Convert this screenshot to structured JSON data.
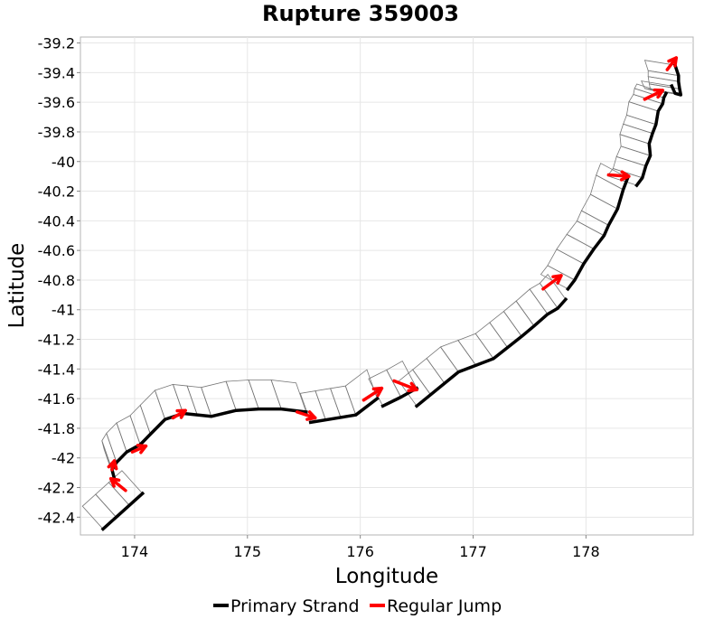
{
  "chart_data": {
    "type": "line",
    "title": "Rupture 359003",
    "xlabel": "Longitude",
    "ylabel": "Latitude",
    "xlim": [
      173.52,
      178.95
    ],
    "ylim": [
      -42.52,
      -39.16
    ],
    "x_ticks": [
      174,
      175,
      176,
      177,
      178
    ],
    "x_tick_labels": [
      "174",
      "175",
      "176",
      "177",
      "178"
    ],
    "y_ticks": [
      -39.2,
      -39.4,
      -39.6,
      -39.8,
      -40.0,
      -40.2,
      -40.4,
      -40.6,
      -40.8,
      -41.0,
      -41.2,
      -41.4,
      -41.6,
      -41.8,
      -42.0,
      -42.2,
      -42.4
    ],
    "y_tick_labels": [
      "-39.2",
      "-39.4",
      "-39.6",
      "-39.8",
      "-40",
      "-40.2",
      "-40.4",
      "-40.6",
      "-40.8",
      "-41",
      "-41.2",
      "-41.4",
      "-41.6",
      "-41.8",
      "-42",
      "-42.2",
      "-42.4"
    ],
    "grid": true,
    "legend_position": "bottom",
    "legend": [
      {
        "label": "Primary Strand",
        "color": "#000000"
      },
      {
        "label": "Regular Jump",
        "color": "#ff0000"
      }
    ],
    "series": [
      {
        "name": "Primary Strand",
        "color": "#000000",
        "segments": [
          [
            [
              173.72,
              -42.48
            ],
            [
              174.07,
              -42.24
            ]
          ],
          [
            [
              173.82,
              -42.14
            ],
            [
              173.8,
              -42.08
            ],
            [
              173.84,
              -42.03
            ],
            [
              173.93,
              -41.96
            ],
            [
              174.05,
              -41.91
            ],
            [
              174.14,
              -41.84
            ],
            [
              174.27,
              -41.74
            ],
            [
              174.43,
              -41.7
            ],
            [
              174.68,
              -41.72
            ],
            [
              174.9,
              -41.68
            ],
            [
              175.1,
              -41.67
            ],
            [
              175.3,
              -41.67
            ],
            [
              175.52,
              -41.69
            ]
          ],
          [
            [
              175.56,
              -41.76
            ],
            [
              175.96,
              -41.71
            ],
            [
              176.15,
              -41.6
            ]
          ],
          [
            [
              176.2,
              -41.65
            ],
            [
              176.36,
              -41.59
            ],
            [
              176.5,
              -41.53
            ]
          ],
          [
            [
              176.5,
              -41.65
            ],
            [
              176.87,
              -41.42
            ],
            [
              177.18,
              -41.33
            ],
            [
              177.43,
              -41.18
            ],
            [
              177.54,
              -41.11
            ],
            [
              177.66,
              -41.03
            ],
            [
              177.75,
              -40.99
            ],
            [
              177.82,
              -40.93
            ]
          ],
          [
            [
              177.84,
              -40.86
            ],
            [
              177.9,
              -40.8
            ],
            [
              177.98,
              -40.69
            ],
            [
              178.07,
              -40.59
            ],
            [
              178.16,
              -40.5
            ],
            [
              178.2,
              -40.43
            ],
            [
              178.28,
              -40.32
            ],
            [
              178.33,
              -40.19
            ],
            [
              178.37,
              -40.11
            ]
          ],
          [
            [
              178.45,
              -40.16
            ],
            [
              178.5,
              -40.11
            ],
            [
              178.53,
              -40.03
            ],
            [
              178.57,
              -39.96
            ],
            [
              178.56,
              -39.88
            ],
            [
              178.59,
              -39.81
            ],
            [
              178.62,
              -39.75
            ],
            [
              178.64,
              -39.66
            ],
            [
              178.68,
              -39.61
            ],
            [
              178.69,
              -39.57
            ],
            [
              178.71,
              -39.54
            ]
          ],
          [
            [
              178.76,
              -39.49
            ],
            [
              178.79,
              -39.54
            ],
            [
              178.84,
              -39.55
            ],
            [
              178.83,
              -39.51
            ],
            [
              178.82,
              -39.46
            ],
            [
              178.82,
              -39.42
            ],
            [
              178.79,
              -39.35
            ]
          ]
        ]
      },
      {
        "name": "Regular Jump",
        "color": "#ff0000",
        "segments": [
          [
            [
              173.92,
              -42.22
            ],
            [
              173.79,
              -42.14
            ]
          ],
          [
            [
              173.8,
              -42.08
            ],
            [
              173.82,
              -42.02
            ]
          ],
          [
            [
              173.98,
              -41.96
            ],
            [
              174.1,
              -41.92
            ]
          ],
          [
            [
              174.34,
              -41.73
            ],
            [
              174.45,
              -41.68
            ]
          ],
          [
            [
              175.44,
              -41.69
            ],
            [
              175.6,
              -41.73
            ]
          ],
          [
            [
              176.03,
              -41.61
            ],
            [
              176.19,
              -41.53
            ]
          ],
          [
            [
              176.3,
              -41.48
            ],
            [
              176.5,
              -41.54
            ]
          ],
          [
            [
              177.62,
              -40.86
            ],
            [
              177.78,
              -40.77
            ]
          ],
          [
            [
              178.2,
              -40.09
            ],
            [
              178.38,
              -40.1
            ]
          ],
          [
            [
              178.52,
              -39.58
            ],
            [
              178.68,
              -39.52
            ]
          ],
          [
            [
              178.72,
              -39.38
            ],
            [
              178.8,
              -39.3
            ]
          ]
        ]
      }
    ]
  }
}
